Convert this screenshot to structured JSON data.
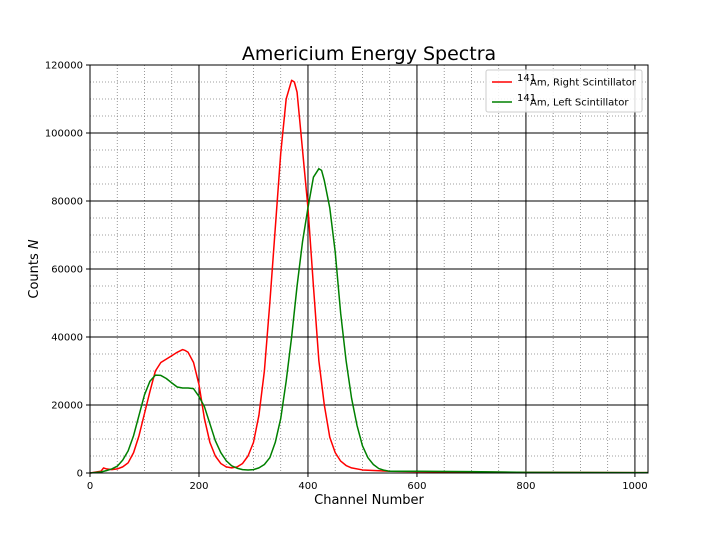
{
  "chart_data": {
    "type": "line",
    "title": "Americium Energy Spectra",
    "xlabel": "Channel Number",
    "ylabel_prefix": "Counts ",
    "ylabel_symbol": "N",
    "xlim": [
      0,
      1024
    ],
    "ylim": [
      0,
      120000
    ],
    "x_major_ticks": [
      0,
      200,
      400,
      600,
      800,
      1000
    ],
    "x_tick_labels": [
      "0",
      "200",
      "400",
      "600",
      "800",
      "1000"
    ],
    "y_major_ticks": [
      0,
      20000,
      40000,
      60000,
      80000,
      100000,
      120000
    ],
    "y_tick_labels": [
      "0",
      "20000",
      "40000",
      "60000",
      "80000",
      "100000",
      "120000"
    ],
    "x_minor_step": 50,
    "y_minor_step": 5000,
    "grid": "major solid black, minor dotted gray",
    "legend_position": "top-right",
    "series": [
      {
        "name_sup": "141",
        "name_rest": "Am, Right Scintillator",
        "color": "#ff0000",
        "points": [
          [
            0,
            0
          ],
          [
            20,
            500
          ],
          [
            25,
            1500
          ],
          [
            30,
            1200
          ],
          [
            40,
            1000
          ],
          [
            50,
            1200
          ],
          [
            60,
            1800
          ],
          [
            70,
            3000
          ],
          [
            80,
            6000
          ],
          [
            90,
            11000
          ],
          [
            100,
            17500
          ],
          [
            110,
            24000
          ],
          [
            120,
            30000
          ],
          [
            130,
            32500
          ],
          [
            140,
            33500
          ],
          [
            150,
            34500
          ],
          [
            160,
            35500
          ],
          [
            170,
            36300
          ],
          [
            175,
            36000
          ],
          [
            180,
            35500
          ],
          [
            190,
            32500
          ],
          [
            200,
            26000
          ],
          [
            210,
            16000
          ],
          [
            220,
            9000
          ],
          [
            230,
            5000
          ],
          [
            240,
            2800
          ],
          [
            250,
            1800
          ],
          [
            260,
            1500
          ],
          [
            270,
            1800
          ],
          [
            280,
            2800
          ],
          [
            290,
            5000
          ],
          [
            300,
            9000
          ],
          [
            310,
            17000
          ],
          [
            320,
            30000
          ],
          [
            330,
            50000
          ],
          [
            340,
            72000
          ],
          [
            350,
            94000
          ],
          [
            360,
            110000
          ],
          [
            370,
            115500
          ],
          [
            375,
            115000
          ],
          [
            380,
            112000
          ],
          [
            390,
            95000
          ],
          [
            400,
            78000
          ],
          [
            410,
            55000
          ],
          [
            420,
            33000
          ],
          [
            430,
            20000
          ],
          [
            440,
            10500
          ],
          [
            450,
            6000
          ],
          [
            460,
            3500
          ],
          [
            470,
            2200
          ],
          [
            480,
            1500
          ],
          [
            500,
            900
          ],
          [
            550,
            500
          ],
          [
            600,
            400
          ],
          [
            700,
            300
          ],
          [
            800,
            200
          ],
          [
            900,
            150
          ],
          [
            1024,
            100
          ]
        ]
      },
      {
        "name_sup": "141",
        "name_rest": "Am, Left Scintillator",
        "color": "#008000",
        "points": [
          [
            0,
            0
          ],
          [
            20,
            300
          ],
          [
            30,
            700
          ],
          [
            40,
            1200
          ],
          [
            50,
            2000
          ],
          [
            60,
            3800
          ],
          [
            70,
            6500
          ],
          [
            80,
            11000
          ],
          [
            90,
            17000
          ],
          [
            100,
            23000
          ],
          [
            110,
            27000
          ],
          [
            120,
            28800
          ],
          [
            130,
            28700
          ],
          [
            140,
            27800
          ],
          [
            150,
            26500
          ],
          [
            160,
            25300
          ],
          [
            170,
            25000
          ],
          [
            180,
            25000
          ],
          [
            190,
            24800
          ],
          [
            200,
            22500
          ],
          [
            210,
            19500
          ],
          [
            220,
            14500
          ],
          [
            230,
            9500
          ],
          [
            240,
            6000
          ],
          [
            250,
            3600
          ],
          [
            260,
            2100
          ],
          [
            270,
            1400
          ],
          [
            280,
            1000
          ],
          [
            290,
            900
          ],
          [
            300,
            1000
          ],
          [
            310,
            1500
          ],
          [
            320,
            2500
          ],
          [
            330,
            4500
          ],
          [
            340,
            9000
          ],
          [
            350,
            16000
          ],
          [
            360,
            27000
          ],
          [
            370,
            40000
          ],
          [
            380,
            55000
          ],
          [
            390,
            68000
          ],
          [
            400,
            78000
          ],
          [
            410,
            87000
          ],
          [
            420,
            89500
          ],
          [
            425,
            89000
          ],
          [
            430,
            86000
          ],
          [
            440,
            78000
          ],
          [
            450,
            65000
          ],
          [
            460,
            47000
          ],
          [
            470,
            33000
          ],
          [
            480,
            22000
          ],
          [
            490,
            14000
          ],
          [
            500,
            8000
          ],
          [
            510,
            4500
          ],
          [
            520,
            2500
          ],
          [
            530,
            1300
          ],
          [
            540,
            800
          ],
          [
            550,
            500
          ],
          [
            600,
            500
          ],
          [
            700,
            400
          ],
          [
            800,
            200
          ],
          [
            900,
            150
          ],
          [
            1024,
            100
          ]
        ]
      }
    ]
  }
}
